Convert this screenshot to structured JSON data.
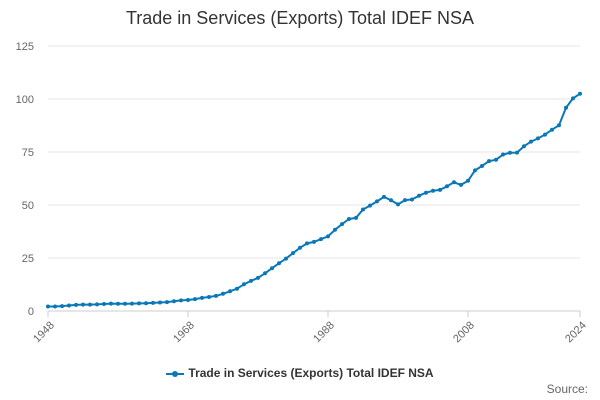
{
  "chart_data": {
    "type": "line",
    "title": "Trade in Services (Exports) Total IDEF NSA",
    "xlabel": "",
    "ylabel": "",
    "xlim": [
      1948,
      2024
    ],
    "ylim": [
      0,
      125
    ],
    "y_ticks": [
      0,
      25,
      50,
      75,
      100,
      125
    ],
    "x_ticks": [
      1948,
      1968,
      1988,
      2008,
      2024
    ],
    "legend": "bottom-center",
    "grid": true,
    "series": [
      {
        "name": "Trade in Services (Exports) Total IDEF NSA",
        "color": "#0a78b6",
        "x": [
          1948,
          1949,
          1950,
          1951,
          1952,
          1953,
          1954,
          1955,
          1956,
          1957,
          1958,
          1959,
          1960,
          1961,
          1962,
          1963,
          1964,
          1965,
          1966,
          1967,
          1968,
          1969,
          1970,
          1971,
          1972,
          1973,
          1974,
          1975,
          1976,
          1977,
          1978,
          1979,
          1980,
          1981,
          1982,
          1983,
          1984,
          1985,
          1986,
          1987,
          1988,
          1989,
          1990,
          1991,
          1992,
          1993,
          1994,
          1995,
          1996,
          1997,
          1998,
          1999,
          2000,
          2001,
          2002,
          2003,
          2004,
          2005,
          2006,
          2007,
          2008,
          2009,
          2010,
          2011,
          2012,
          2013,
          2014,
          2015,
          2016,
          2017,
          2018,
          2019,
          2020,
          2021,
          2022,
          2023,
          2024
        ],
        "values": [
          2.1,
          2.1,
          2.3,
          2.6,
          2.9,
          3.0,
          3.0,
          3.1,
          3.3,
          3.5,
          3.4,
          3.4,
          3.5,
          3.6,
          3.7,
          3.8,
          4.0,
          4.2,
          4.6,
          5.0,
          5.2,
          5.6,
          6.2,
          6.6,
          7.1,
          8.1,
          9.3,
          10.5,
          12.6,
          14.2,
          15.6,
          17.8,
          20.2,
          22.5,
          24.7,
          27.3,
          29.8,
          31.9,
          32.6,
          33.9,
          35.2,
          38.3,
          41.0,
          43.4,
          43.9,
          47.9,
          49.7,
          51.7,
          53.8,
          52.2,
          50.3,
          52.3,
          52.6,
          54.4,
          55.8,
          56.7,
          57.1,
          58.8,
          60.7,
          59.5,
          61.4,
          66.3,
          68.4,
          70.7,
          71.3,
          73.8,
          74.6,
          74.7,
          77.7,
          79.9,
          81.4,
          83.2,
          85.5,
          87.6,
          95.9,
          100.3,
          102.5
        ]
      }
    ]
  },
  "legend_label": "Trade in Services (Exports) Total IDEF NSA",
  "source_label": "Source:"
}
